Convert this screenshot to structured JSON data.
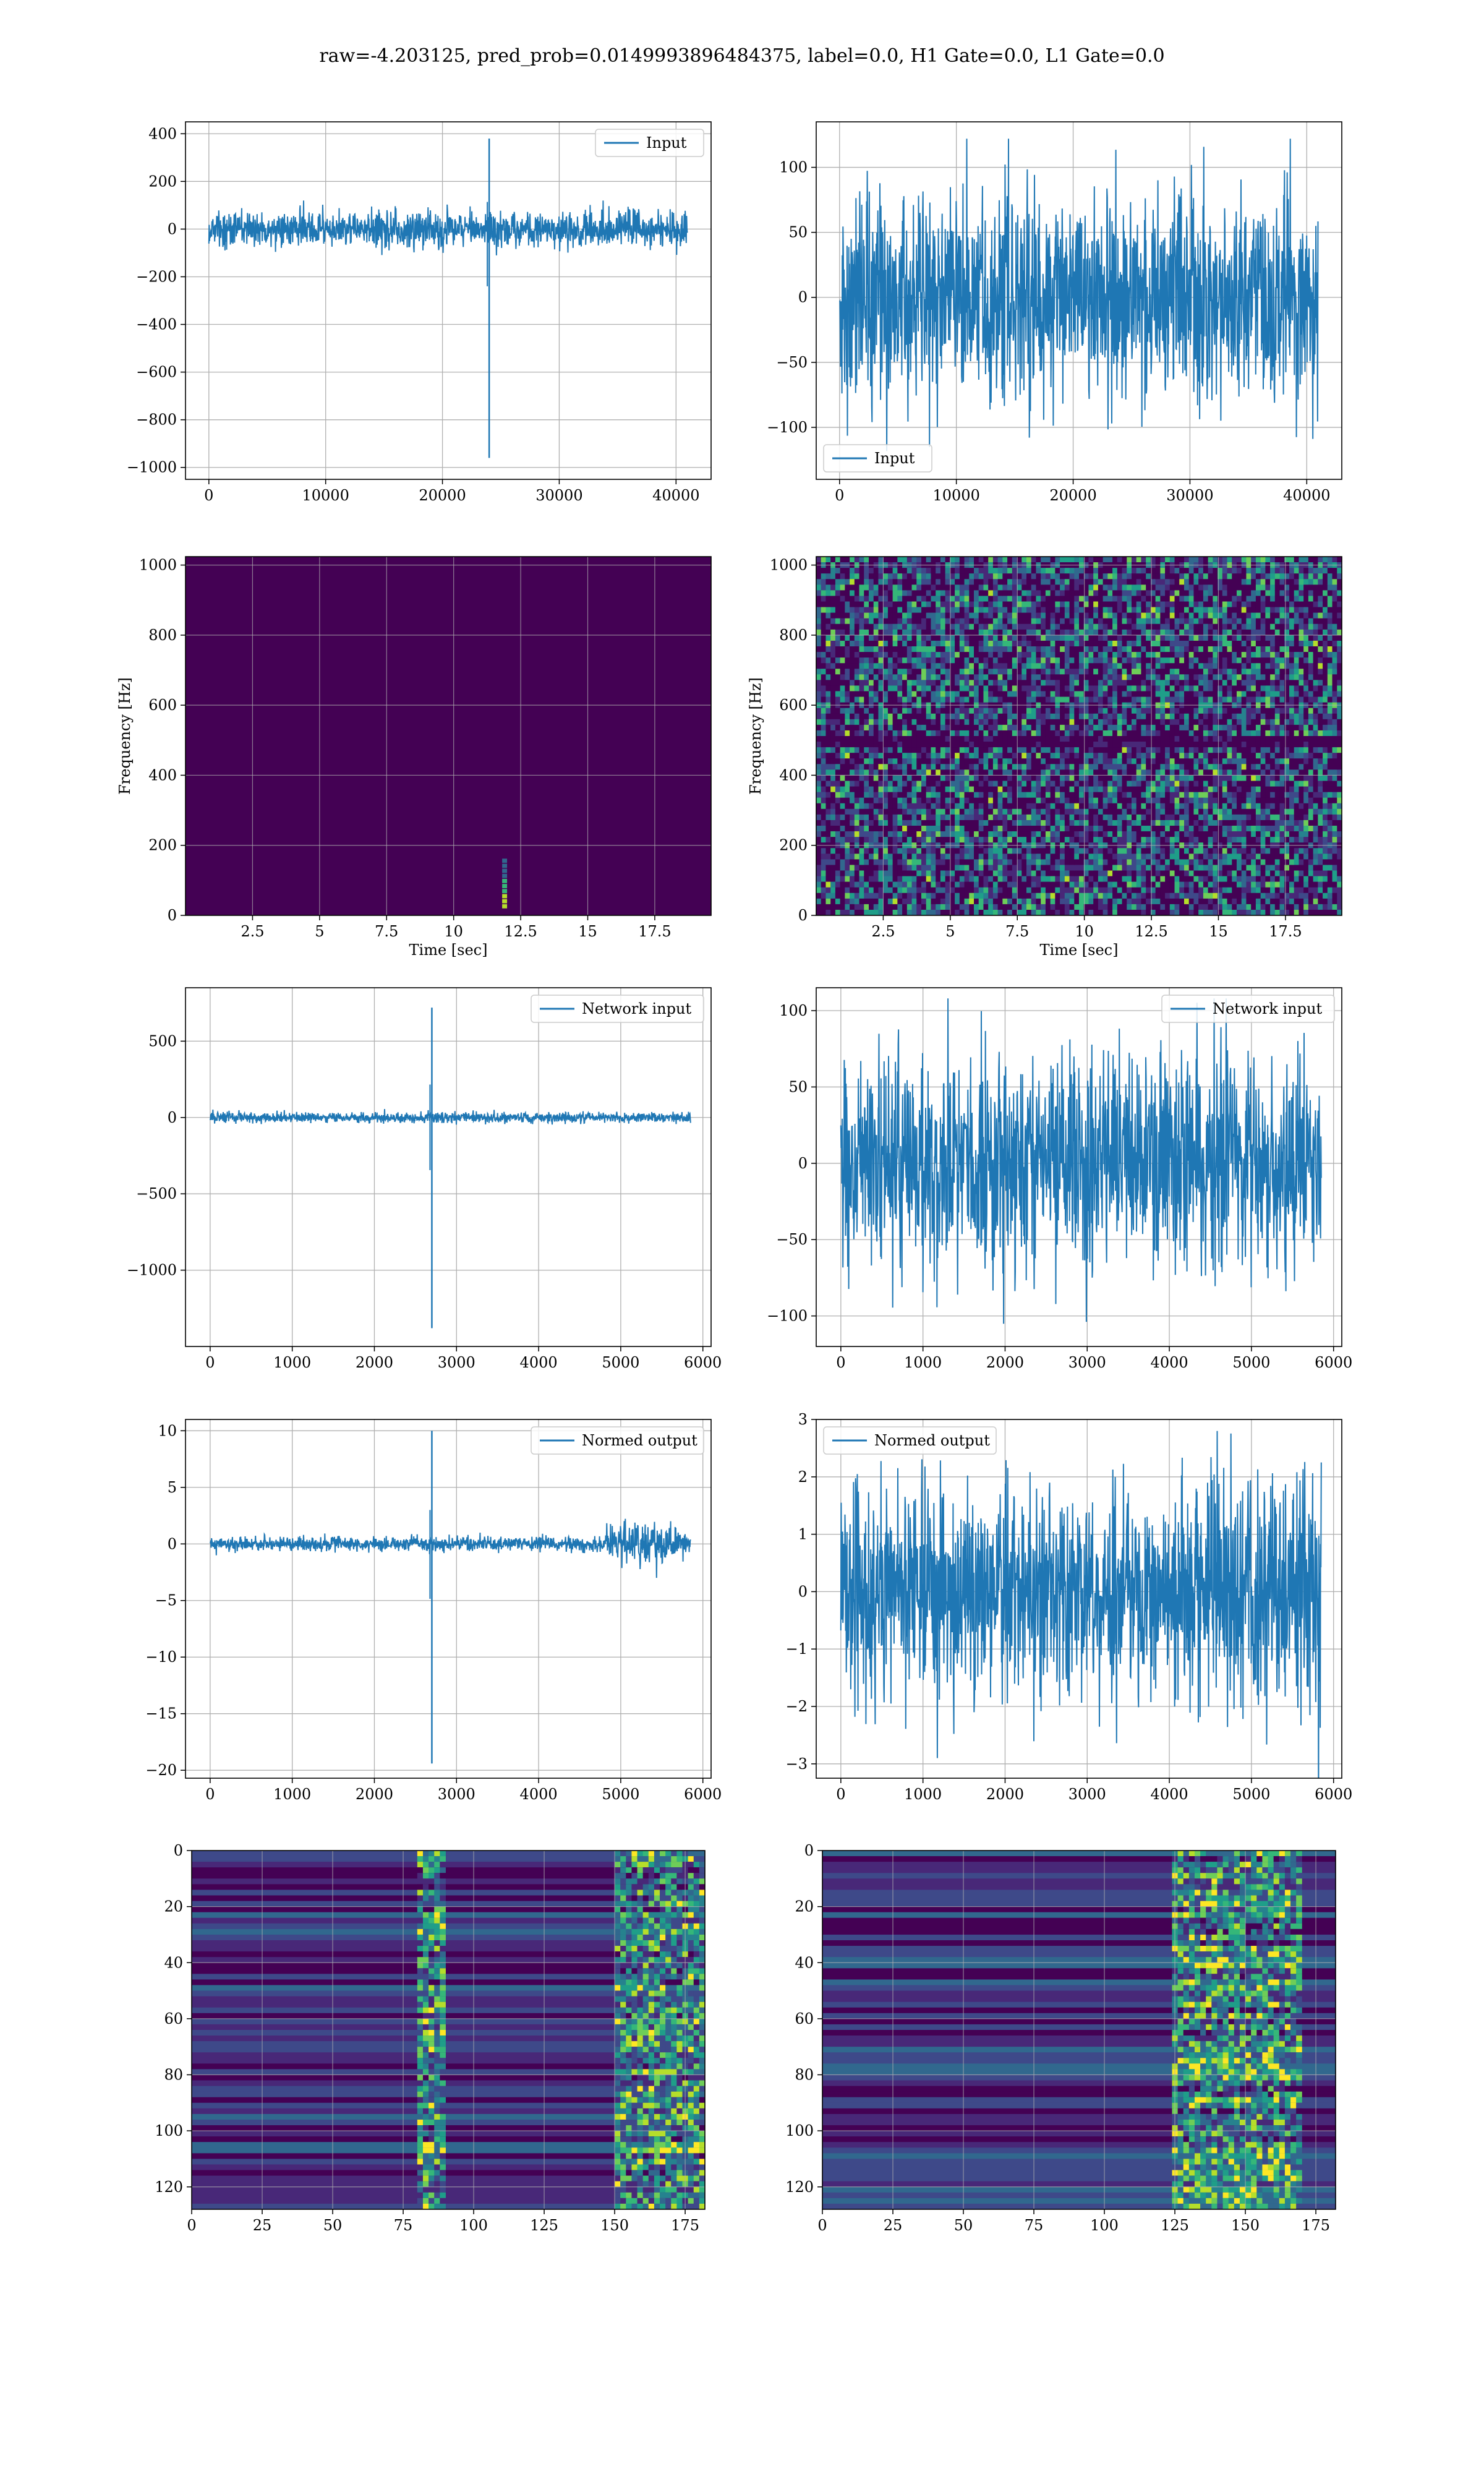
{
  "figure": {
    "suptitle": "raw=-4.203125, pred_prob=0.0149993896484375, label=0.0, H1 Gate=0.0, L1 Gate=0.0"
  },
  "colors": {
    "series": "#1f77b4",
    "grid": "#b0b0b0",
    "viridis": [
      "#440154",
      "#482878",
      "#3e4989",
      "#31688e",
      "#26828e",
      "#1f9e89",
      "#35b779",
      "#6ece58",
      "#b5de2b",
      "#fde725"
    ]
  },
  "chart_data": [
    {
      "id": "input-h1",
      "type": "line",
      "legend": "Input",
      "legend_loc": "upper-right",
      "xlim": [
        -2000,
        43000
      ],
      "ylim": [
        -1050,
        450
      ],
      "xticks": [
        0,
        10000,
        20000,
        30000,
        40000
      ],
      "yticks": [
        -1000,
        -800,
        -600,
        -400,
        -200,
        0,
        200,
        400
      ],
      "xlabel": "",
      "ylabel": "",
      "x_range": [
        0,
        40960
      ],
      "noise_level": [
        -110,
        120
      ],
      "spikes": [
        {
          "x": 24000,
          "max": 380,
          "min": -960
        }
      ]
    },
    {
      "id": "input-l1",
      "type": "line",
      "legend": "Input",
      "legend_loc": "lower-left",
      "xlim": [
        -2000,
        43000
      ],
      "ylim": [
        -140,
        135
      ],
      "xticks": [
        0,
        10000,
        20000,
        30000,
        40000
      ],
      "yticks": [
        -100,
        -50,
        0,
        50,
        100
      ],
      "xlabel": "",
      "ylabel": "",
      "x_range": [
        0,
        40960
      ],
      "noise_level": [
        -125,
        122
      ],
      "spikes": []
    },
    {
      "id": "spec-h1",
      "type": "heatmap",
      "xlim": [
        0,
        19.6
      ],
      "ylim": [
        0,
        1024
      ],
      "xticks": [
        2.5,
        5.0,
        7.5,
        10.0,
        12.5,
        15.0,
        17.5
      ],
      "yticks": [
        0,
        200,
        400,
        600,
        800,
        1000
      ],
      "xlabel": "Time [sec]",
      "ylabel": "Frequency [Hz]",
      "background": "dark",
      "blob": {
        "t": 11.9,
        "f_min": 20,
        "f_max": 150
      }
    },
    {
      "id": "spec-l1",
      "type": "heatmap",
      "xlim": [
        0,
        19.6
      ],
      "ylim": [
        0,
        1024
      ],
      "xticks": [
        2.5,
        5.0,
        7.5,
        10.0,
        12.5,
        15.0,
        17.5
      ],
      "yticks": [
        0,
        200,
        400,
        600,
        800,
        1000
      ],
      "xlabel": "Time [sec]",
      "ylabel": "Frequency [Hz]",
      "background": "speckle",
      "dark_band_hz": 500
    },
    {
      "id": "net-h1",
      "type": "line",
      "legend": "Network input",
      "legend_loc": "upper-right",
      "xlim": [
        -300,
        6100
      ],
      "ylim": [
        -1500,
        850
      ],
      "xticks": [
        0,
        1000,
        2000,
        3000,
        4000,
        5000,
        6000
      ],
      "yticks": [
        -1000,
        -500,
        0,
        500
      ],
      "xlabel": "",
      "ylabel": "",
      "x_range": [
        0,
        5850
      ],
      "noise_level": [
        -50,
        55
      ],
      "spikes": [
        {
          "x": 2700,
          "max": 720,
          "min": -1380
        }
      ]
    },
    {
      "id": "net-l1",
      "type": "line",
      "legend": "Network input",
      "legend_loc": "upper-right",
      "xlim": [
        -300,
        6100
      ],
      "ylim": [
        -120,
        115
      ],
      "xticks": [
        0,
        1000,
        2000,
        3000,
        4000,
        5000,
        6000
      ],
      "yticks": [
        -100,
        -50,
        0,
        50,
        100
      ],
      "xlabel": "",
      "ylabel": "",
      "x_range": [
        0,
        5850
      ],
      "noise_level": [
        -110,
        108
      ],
      "spikes": []
    },
    {
      "id": "norm-h1",
      "type": "line",
      "legend": "Normed output",
      "legend_loc": "upper-right",
      "xlim": [
        -300,
        6100
      ],
      "ylim": [
        -20.7,
        11.0
      ],
      "xticks": [
        0,
        1000,
        2000,
        3000,
        4000,
        5000,
        6000
      ],
      "yticks": [
        -20,
        -15,
        -10,
        -5,
        0,
        5,
        10
      ],
      "xlabel": "",
      "ylabel": "",
      "x_range": [
        0,
        5850
      ],
      "noise_level": [
        -1,
        1
      ],
      "spikes": [
        {
          "x": 2700,
          "max": 10,
          "min": -19.4
        }
      ],
      "growth": {
        "from": 4700,
        "peak": 3.3
      }
    },
    {
      "id": "norm-l1",
      "type": "line",
      "legend": "Normed output",
      "legend_loc": "upper-left",
      "xlim": [
        -300,
        6100
      ],
      "ylim": [
        -3.25,
        3.0
      ],
      "xticks": [
        0,
        1000,
        2000,
        3000,
        4000,
        5000,
        6000
      ],
      "yticks": [
        -3,
        -2,
        -1,
        0,
        1,
        2,
        3
      ],
      "xlabel": "",
      "ylabel": "",
      "x_range": [
        0,
        5850
      ],
      "noise_level": [
        -2.9,
        2.8
      ],
      "spikes": [],
      "growth": {
        "from": 4600,
        "peak": 2.8
      }
    },
    {
      "id": "feat-h1",
      "type": "heatmap",
      "xlim": [
        0,
        182
      ],
      "ylim": [
        128,
        0
      ],
      "xticks": [
        0,
        25,
        50,
        75,
        100,
        125,
        150,
        175
      ],
      "yticks": [
        0,
        20,
        40,
        60,
        80,
        100,
        120
      ],
      "xlabel": "",
      "ylabel": "",
      "active_cols": [
        [
          80,
          90
        ],
        [
          150,
          182
        ]
      ]
    },
    {
      "id": "feat-l1",
      "type": "heatmap",
      "xlim": [
        0,
        182
      ],
      "ylim": [
        128,
        0
      ],
      "xticks": [
        0,
        25,
        50,
        75,
        100,
        125,
        150,
        175
      ],
      "yticks": [
        0,
        20,
        40,
        60,
        80,
        100,
        120
      ],
      "xlabel": "",
      "ylabel": "",
      "active_cols": [
        [
          125,
          170
        ]
      ]
    }
  ]
}
